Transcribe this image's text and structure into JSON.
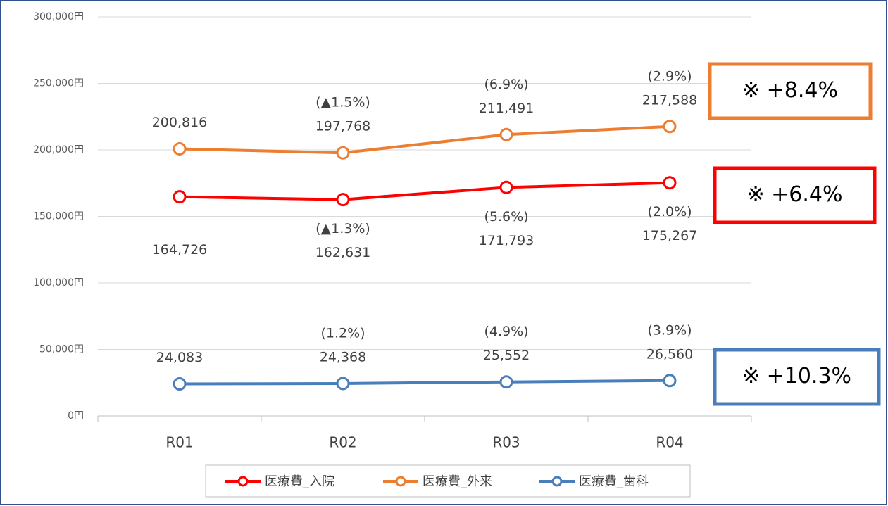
{
  "chart_data": {
    "type": "line",
    "categories": [
      "R01",
      "R02",
      "R03",
      "R04"
    ],
    "ylim": [
      0,
      300000
    ],
    "yticks": [
      {
        "value": 0,
        "label": "0円"
      },
      {
        "value": 50000,
        "label": "50,000円"
      },
      {
        "value": 100000,
        "label": "100,000円"
      },
      {
        "value": 150000,
        "label": "150,000円"
      },
      {
        "value": 200000,
        "label": "200,000円"
      },
      {
        "value": 250000,
        "label": "250,000円"
      },
      {
        "value": 300000,
        "label": "300,000円"
      }
    ],
    "grid": true,
    "legend": "bottom",
    "series": [
      {
        "name": "医療費_入院",
        "color": "#ff0000",
        "values": [
          164726,
          162631,
          171793,
          175267
        ],
        "value_labels": [
          "164,726",
          "162,631",
          "171,793",
          "175,267"
        ],
        "change_labels": [
          null,
          "(▲1.3%)",
          "(5.6%)",
          "(2.0%)"
        ],
        "annotation": "※ +6.4%"
      },
      {
        "name": "医療費_外来",
        "color": "#ed7d31",
        "values": [
          200816,
          197768,
          211491,
          217588
        ],
        "value_labels": [
          "200,816",
          "197,768",
          "211,491",
          "217,588"
        ],
        "change_labels": [
          null,
          "(▲1.5%)",
          "(6.9%)",
          "(2.9%)"
        ],
        "annotation": "※ +8.4%"
      },
      {
        "name": "医療費_歯科",
        "color": "#4a7ebb",
        "values": [
          24083,
          24368,
          25552,
          26560
        ],
        "value_labels": [
          "24,083",
          "24,368",
          "25,552",
          "26,560"
        ],
        "change_labels": [
          null,
          "(1.2%)",
          "(4.9%)",
          "(3.9%)"
        ],
        "annotation": "※ +10.3%"
      }
    ]
  }
}
